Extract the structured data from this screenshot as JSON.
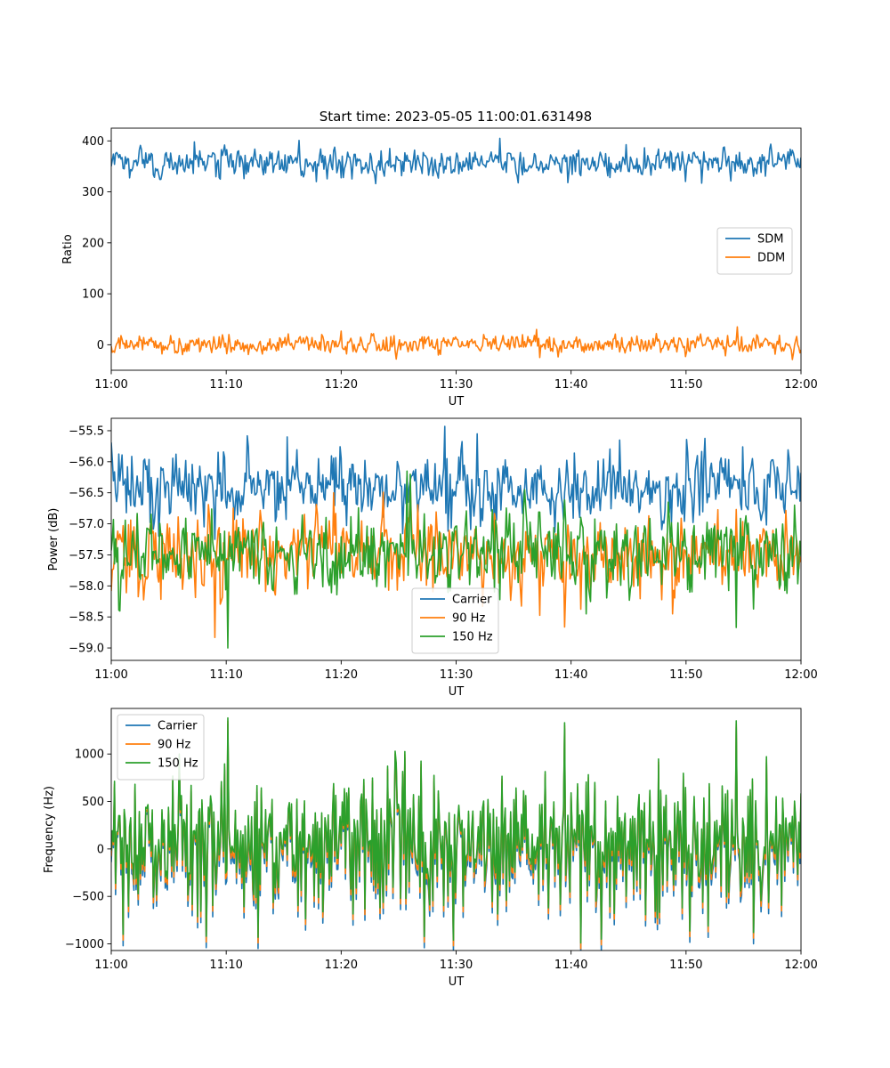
{
  "title": "Start time: 2023-05-05 11:00:01.631498",
  "colors": {
    "c1": "#1f77b4",
    "c2": "#ff7f0e",
    "c3": "#2ca02c"
  },
  "chart_data": [
    {
      "type": "line",
      "xlabel": "UT",
      "ylabel": "Ratio",
      "xlim": [
        0,
        60
      ],
      "ylim": [
        -50,
        425
      ],
      "xticks": [
        0,
        10,
        20,
        30,
        40,
        50,
        60
      ],
      "xtick_labels": [
        "11:00",
        "11:10",
        "11:20",
        "11:30",
        "11:40",
        "11:50",
        "12:00"
      ],
      "yticks": [
        0,
        100,
        200,
        300,
        400
      ],
      "ytick_labels": [
        "0",
        "100",
        "200",
        "300",
        "400"
      ],
      "legend_loc": "center-right",
      "series": [
        {
          "name": "SDM",
          "color": "#1f77b4",
          "mean": 357,
          "noise": 14,
          "spikes": [
            [
              7.2,
              398
            ],
            [
              16.3,
              401
            ],
            [
              33.8,
              405
            ],
            [
              9.5,
              325
            ],
            [
              17.8,
              320
            ],
            [
              51.4,
              317
            ]
          ]
        },
        {
          "name": "DDM",
          "color": "#ff7f0e",
          "mean": 0,
          "noise": 9,
          "spikes": [
            [
              54.5,
              35
            ],
            [
              37.0,
              30
            ],
            [
              24.8,
              -28
            ],
            [
              37.3,
              -25
            ]
          ]
        }
      ]
    },
    {
      "type": "line",
      "xlabel": "UT",
      "ylabel": "Power (dB)",
      "xlim": [
        0,
        60
      ],
      "ylim": [
        -59.2,
        -55.3
      ],
      "xticks": [
        0,
        10,
        20,
        30,
        40,
        50,
        60
      ],
      "xtick_labels": [
        "11:00",
        "11:10",
        "11:20",
        "11:30",
        "11:40",
        "11:50",
        "12:00"
      ],
      "yticks": [
        -59.0,
        -58.5,
        -58.0,
        -57.5,
        -57.0,
        -56.5,
        -56.0,
        -55.5
      ],
      "ytick_labels": [
        "−59.0",
        "−58.5",
        "−58.0",
        "−57.5",
        "−57.0",
        "−56.5",
        "−56.0",
        "−55.5"
      ],
      "legend_loc": "lower-center",
      "series": [
        {
          "name": "Carrier",
          "color": "#1f77b4",
          "mean": -56.4,
          "noise": 0.28,
          "spikes": [
            [
              29.0,
              -55.43
            ],
            [
              15.3,
              -55.6
            ],
            [
              31.8,
              -55.55
            ],
            [
              44.2,
              -55.65
            ],
            [
              9.0,
              -57.25
            ]
          ]
        },
        {
          "name": "90 Hz",
          "color": "#ff7f0e",
          "mean": -57.45,
          "noise": 0.32,
          "spikes": [
            [
              9.0,
              -58.83
            ],
            [
              48.8,
              -58.45
            ],
            [
              26.0,
              -56.35
            ],
            [
              19.3,
              -56.5
            ]
          ]
        },
        {
          "name": "150 Hz",
          "color": "#2ca02c",
          "mean": -57.45,
          "noise": 0.32,
          "spikes": [
            [
              10.1,
              -59.0
            ],
            [
              54.4,
              -58.67
            ],
            [
              41.3,
              -58.45
            ],
            [
              26.0,
              -56.2
            ],
            [
              25.7,
              -56.15
            ]
          ]
        }
      ]
    },
    {
      "type": "line",
      "xlabel": "UT",
      "ylabel": "Frequency (Hz)",
      "xlim": [
        0,
        60
      ],
      "ylim": [
        -1070,
        1480
      ],
      "xticks": [
        0,
        10,
        20,
        30,
        40,
        50,
        60
      ],
      "xtick_labels": [
        "11:00",
        "11:10",
        "11:20",
        "11:30",
        "11:40",
        "11:50",
        "12:00"
      ],
      "yticks": [
        -1000,
        -500,
        0,
        500,
        1000
      ],
      "ytick_labels": [
        "−1000",
        "−500",
        "0",
        "500",
        "1000"
      ],
      "legend_loc": "upper-left",
      "series": [
        {
          "name": "Carrier",
          "color": "#1f77b4",
          "offset": -70
        },
        {
          "name": "90 Hz",
          "color": "#ff7f0e",
          "offset": -35
        },
        {
          "name": "150 Hz",
          "color": "#2ca02c",
          "offset": 0
        }
      ],
      "base_noise": 360,
      "spikes": [
        [
          10.1,
          1380
        ],
        [
          54.4,
          1350
        ],
        [
          39.4,
          1330
        ],
        [
          5.9,
          1000
        ],
        [
          24.7,
          1030
        ],
        [
          12.8,
          -930
        ],
        [
          29.8,
          -960
        ],
        [
          42.6,
          -950
        ],
        [
          1.0,
          -900
        ],
        [
          8.3,
          -920
        ]
      ]
    }
  ]
}
